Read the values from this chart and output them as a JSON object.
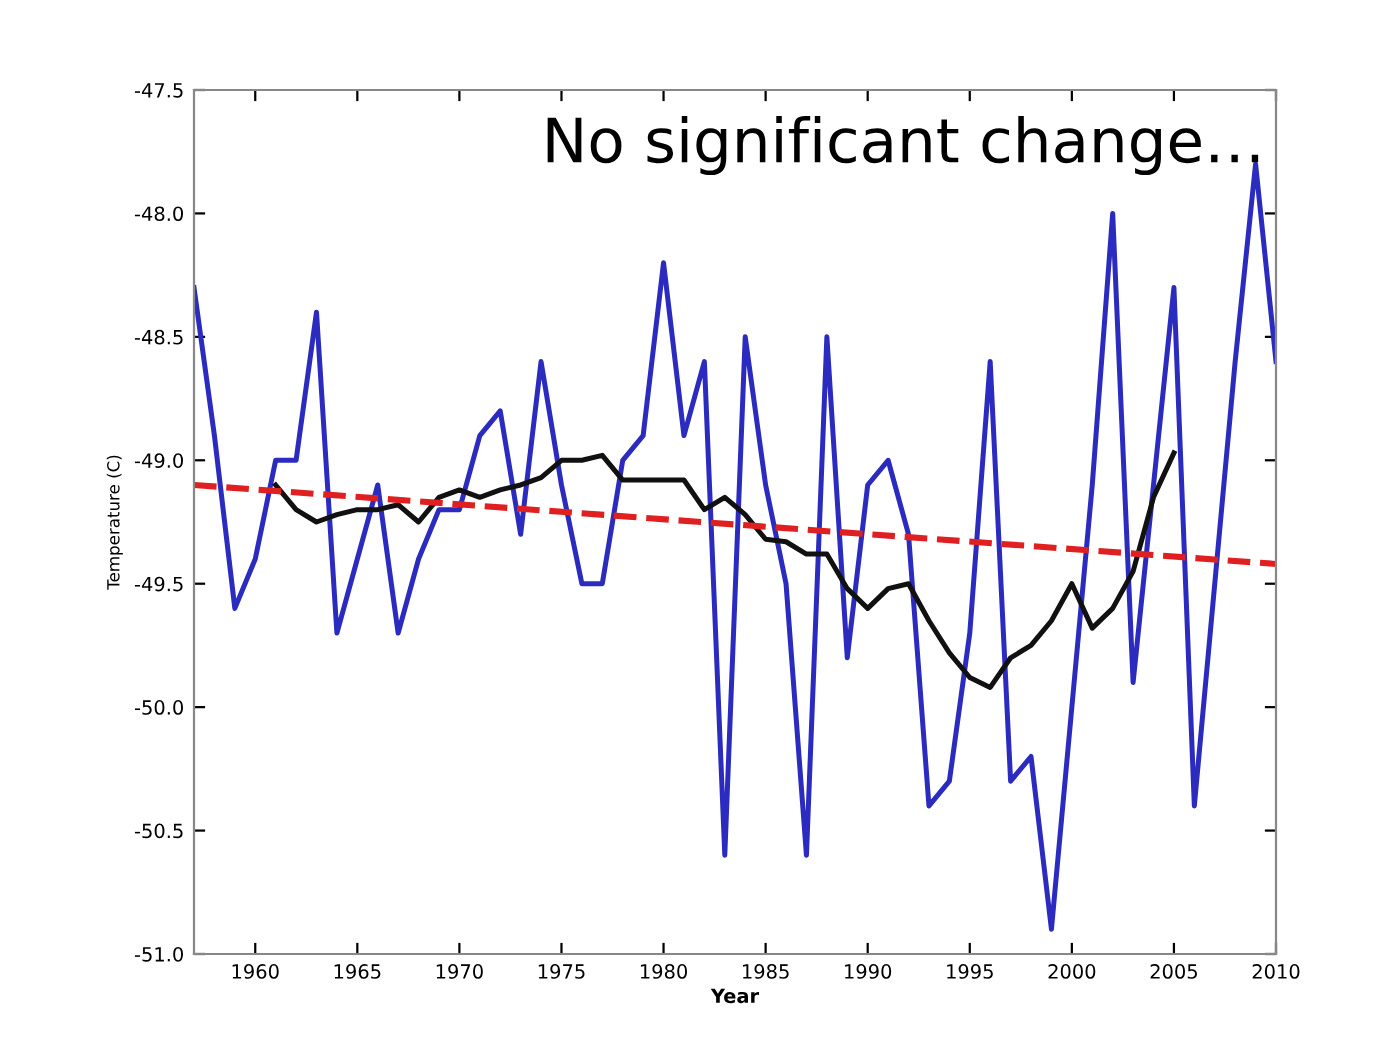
{
  "chart_data": {
    "type": "line",
    "xlabel": "Year",
    "ylabel": "Temperature (C)",
    "annotations": [
      "No significant change…"
    ],
    "xlim": [
      1957,
      2010
    ],
    "xticks": [
      1960,
      1965,
      1970,
      1975,
      1980,
      1985,
      1990,
      1995,
      2000,
      2005,
      2010
    ],
    "ylim": [
      -51.0,
      -47.5
    ],
    "yticks": [
      {
        "value": -51,
        "label": "-51.0"
      },
      -50.5,
      {
        "value": -50,
        "label": "-50.0"
      },
      -49.5,
      {
        "value": -49,
        "label": "-49.0"
      },
      -48.5,
      {
        "value": -48,
        "label": "-48.0"
      },
      -47.5
    ],
    "grid": false,
    "series": [
      {
        "color": "#2b2bc0",
        "x": [
          1957,
          1958,
          1959,
          1960,
          1961,
          1962,
          1963,
          1964,
          1965,
          1966,
          1967,
          1968,
          1969,
          1970,
          1971,
          1972,
          1973,
          1974,
          1975,
          1976,
          1977,
          1978,
          1979,
          1980,
          1981,
          1982,
          1983,
          1984,
          1985,
          1986,
          1987,
          1988,
          1989,
          1990,
          1991,
          1992,
          1993,
          1994,
          1995,
          1996,
          1997,
          1998,
          1999,
          2000,
          2001,
          2002,
          2003,
          2004,
          2005,
          2006,
          2007,
          2008,
          2009,
          2010
        ],
        "values": [
          -48.3,
          -48.9,
          -49.6,
          -49.4,
          -49.0,
          -49.0,
          -48.4,
          -49.7,
          -49.4,
          -49.1,
          -49.7,
          -49.4,
          -49.2,
          -49.2,
          -48.9,
          -48.8,
          -49.3,
          -48.6,
          -49.1,
          -49.5,
          -49.5,
          -49.0,
          -48.9,
          -48.2,
          -48.9,
          -48.6,
          -50.6,
          -48.5,
          -49.1,
          -49.5,
          -50.6,
          -48.5,
          -49.8,
          -49.1,
          -49.0,
          -49.3,
          -50.4,
          -50.3,
          -49.7,
          -48.6,
          -50.3,
          -50.2,
          -50.9,
          -50.0,
          -49.1,
          -48.0,
          -49.9,
          -49.1,
          -48.3,
          -50.4,
          -49.5,
          -48.6,
          -47.8,
          -48.6
        ]
      },
      {
        "color": "#111111",
        "x": [
          1961,
          1962,
          1963,
          1964,
          1965,
          1966,
          1967,
          1968,
          1969,
          1970,
          1971,
          1972,
          1973,
          1974,
          1975,
          1976,
          1977,
          1978,
          1979,
          1980,
          1981,
          1982,
          1983,
          1984,
          1985,
          1986,
          1987,
          1988,
          1989,
          1990,
          1991,
          1992,
          1993,
          1994,
          1995,
          1996,
          1997,
          1998,
          1999,
          2000,
          2001,
          2002,
          2003,
          2004,
          2005
        ],
        "values": [
          -49.1,
          -49.2,
          -49.25,
          -49.22,
          -49.2,
          -49.2,
          -49.18,
          -49.25,
          -49.15,
          -49.12,
          -49.15,
          -49.12,
          -49.1,
          -49.07,
          -49.0,
          -49.0,
          -48.98,
          -49.08,
          -49.08,
          -49.08,
          -49.08,
          -49.2,
          -49.15,
          -49.22,
          -49.32,
          -49.33,
          -49.38,
          -49.38,
          -49.52,
          -49.6,
          -49.52,
          -49.5,
          -49.65,
          -49.78,
          -49.88,
          -49.92,
          -49.8,
          -49.75,
          -49.65,
          -49.5,
          -49.68,
          -49.6,
          -49.45,
          -49.15,
          -48.97
        ]
      },
      {
        "color": "#e02020",
        "line_style": "dashed",
        "x": [
          1957,
          2010
        ],
        "values": [
          -49.1,
          -49.42
        ]
      }
    ]
  }
}
